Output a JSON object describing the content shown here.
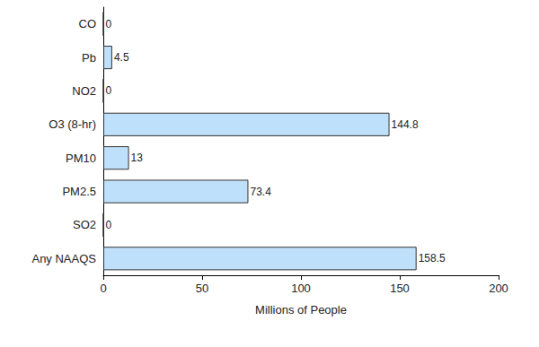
{
  "chart_data": {
    "type": "bar",
    "orientation": "horizontal",
    "categories": [
      "CO",
      "Pb",
      "NO2",
      "O3 (8-hr)",
      "PM10",
      "PM2.5",
      "SO2",
      "Any NAAQS"
    ],
    "values": [
      0,
      4.5,
      0,
      144.8,
      13,
      73.4,
      0,
      158.5
    ],
    "color": "#bfe0fa",
    "xlabel": "Millions of People",
    "xlim": [
      0,
      200
    ],
    "xticks": [
      0,
      50,
      100,
      150,
      200
    ],
    "data_labels": true,
    "grid": false
  }
}
